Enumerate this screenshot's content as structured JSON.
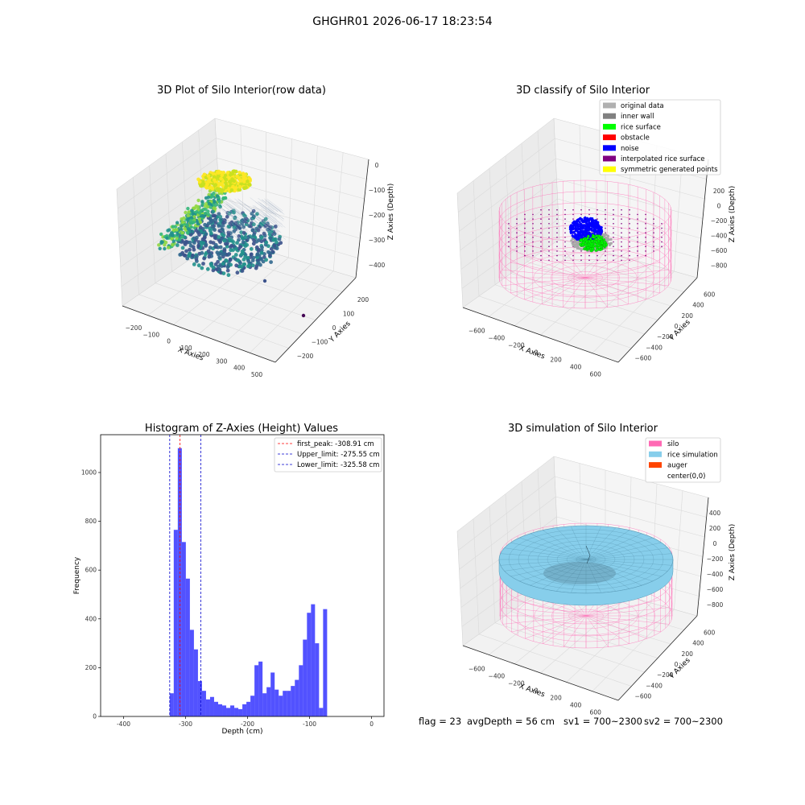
{
  "suptitle": "GHGHR01 2026-06-17 18:23:54",
  "footer": {
    "flag": "flag = 23",
    "avg_depth": "avgDepth = 56 cm",
    "sv1": "sv1 = 700~2300",
    "sv2": "sv2 = 700~2300"
  },
  "colors": {
    "silo": "#ff69b4",
    "rice_simulation": "#87ceeb",
    "auger": "#ff4500",
    "hist_bar": "#0000ff",
    "peak_line": "#ff0000",
    "limit_line": "#0000cc"
  },
  "chart_data": [
    {
      "type": "scatter",
      "panel": "raw",
      "title": "3D Plot of Silo Interior(row data)",
      "xlabel": "X Axies",
      "ylabel": "Y Axies",
      "zlabel": "Z Axies (Depth)",
      "x_ticks": [
        "−200",
        "−100",
        "0",
        "100",
        "200",
        "300",
        "400",
        "500"
      ],
      "y_ticks": [
        "−200",
        "−100",
        "0",
        "100",
        "200"
      ],
      "z_ticks": [
        "0",
        "−100",
        "−200",
        "−300",
        "−400"
      ],
      "xlim": [
        -250,
        500
      ],
      "ylim": [
        -250,
        250
      ],
      "zlim": [
        -450,
        20
      ],
      "grid": true
    },
    {
      "type": "scatter",
      "panel": "classify",
      "title": "3D classify of Silo Interior",
      "xlabel": "X Axies",
      "ylabel": "Y Axies",
      "zlabel": "Z Axies (Depth)",
      "x_ticks": [
        "−600",
        "−400",
        "−200",
        "0",
        "200",
        "400",
        "600"
      ],
      "y_ticks": [
        "−600",
        "−400",
        "−200",
        "0",
        "200",
        "400",
        "600"
      ],
      "z_ticks": [
        "200",
        "0",
        "−200",
        "−400",
        "−600",
        "−800"
      ],
      "z_top_tick": "200",
      "legend": [
        {
          "name": "original data",
          "color": "#b0b0b0"
        },
        {
          "name": "inner wall",
          "color": "#808080"
        },
        {
          "name": "rice surface",
          "color": "#00ff00"
        },
        {
          "name": "obstacle",
          "color": "#ff0000"
        },
        {
          "name": "noise",
          "color": "#0000ff"
        },
        {
          "name": "interpolated rice surface",
          "color": "#800080"
        },
        {
          "name": "symmetric generated points",
          "color": "#ffff00"
        }
      ],
      "legend_position": "top-right",
      "grid": true
    },
    {
      "type": "bar",
      "panel": "histogram",
      "title": "Histogram of Z-Axies (Height) Values",
      "xlabel": "Depth (cm)",
      "ylabel": "Frequency",
      "x_ticks": [
        -400,
        -300,
        -200,
        -100,
        0
      ],
      "y_ticks": [
        0,
        200,
        400,
        600,
        800,
        1000
      ],
      "xlim": [
        -437,
        20
      ],
      "ylim": [
        0,
        1155
      ],
      "bin_start": -325.58,
      "bin_width": 6.51,
      "values": [
        95,
        765,
        1100,
        715,
        565,
        355,
        275,
        145,
        105,
        70,
        80,
        60,
        50,
        45,
        35,
        45,
        35,
        30,
        50,
        60,
        85,
        210,
        225,
        95,
        120,
        180,
        110,
        85,
        105,
        105,
        125,
        150,
        210,
        315,
        425,
        460,
        300,
        35,
        440
      ],
      "lines": [
        {
          "label": "first_peak: -308.91 cm",
          "x": -308.91,
          "color": "#ff0000"
        },
        {
          "label": "Upper_limit: -275.55 cm",
          "x": -275.55,
          "color": "#0000cc"
        },
        {
          "label": "Lower_limit: -325.58 cm",
          "x": -325.58,
          "color": "#0000cc"
        }
      ],
      "legend_position": "top-right"
    },
    {
      "type": "scatter",
      "panel": "simulation",
      "title": "3D simulation of Silo Interior",
      "xlabel": "X Axies",
      "ylabel": "Y Axies",
      "zlabel": "Z Axies (Depth)",
      "x_ticks": [
        "−600",
        "−400",
        "−200",
        "0",
        "200",
        "400",
        "600"
      ],
      "y_ticks": [
        "−600",
        "−400",
        "−200",
        "0",
        "200",
        "400",
        "600"
      ],
      "z_ticks": [
        "400",
        "200",
        "0",
        "−200",
        "−400",
        "−600",
        "−800"
      ],
      "legend": [
        {
          "name": "silo",
          "color": "#ff69b4"
        },
        {
          "name": "rice simulation",
          "color": "#87ceeb"
        },
        {
          "name": "auger",
          "color": "#ff4500"
        },
        {
          "name": "center(0,0)",
          "color": ""
        }
      ],
      "legend_position": "top-right",
      "grid": true
    }
  ]
}
